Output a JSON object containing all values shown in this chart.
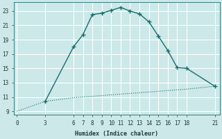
{
  "xlabel": "Humidex (Indice chaleur)",
  "bg_color": "#cce8e8",
  "grid_color": "#afd8d8",
  "line_color": "#1a6b6b",
  "x_ticks": [
    0,
    3,
    6,
    7,
    8,
    9,
    10,
    11,
    12,
    13,
    14,
    15,
    16,
    17,
    18,
    21
  ],
  "ylim": [
    8.5,
    24.2
  ],
  "xlim": [
    -0.3,
    21.5
  ],
  "yticks": [
    9,
    11,
    13,
    15,
    17,
    19,
    21,
    23
  ],
  "curve_x": [
    3,
    6,
    7,
    8,
    9,
    10,
    11,
    12,
    13,
    14,
    15,
    16,
    17,
    18,
    21
  ],
  "curve_y": [
    10.4,
    18.0,
    19.7,
    22.5,
    22.7,
    23.1,
    23.5,
    23.0,
    22.6,
    21.5,
    19.5,
    17.5,
    15.1,
    15.0,
    12.5
  ],
  "lower_x": [
    0,
    3,
    6,
    7,
    8,
    9,
    10,
    11,
    12,
    13,
    14,
    15,
    16,
    17,
    18,
    21
  ],
  "lower_y": [
    9.0,
    10.4,
    10.9,
    11.0,
    11.1,
    11.2,
    11.3,
    11.4,
    11.5,
    11.6,
    11.7,
    11.8,
    11.9,
    12.0,
    12.1,
    12.5
  ]
}
